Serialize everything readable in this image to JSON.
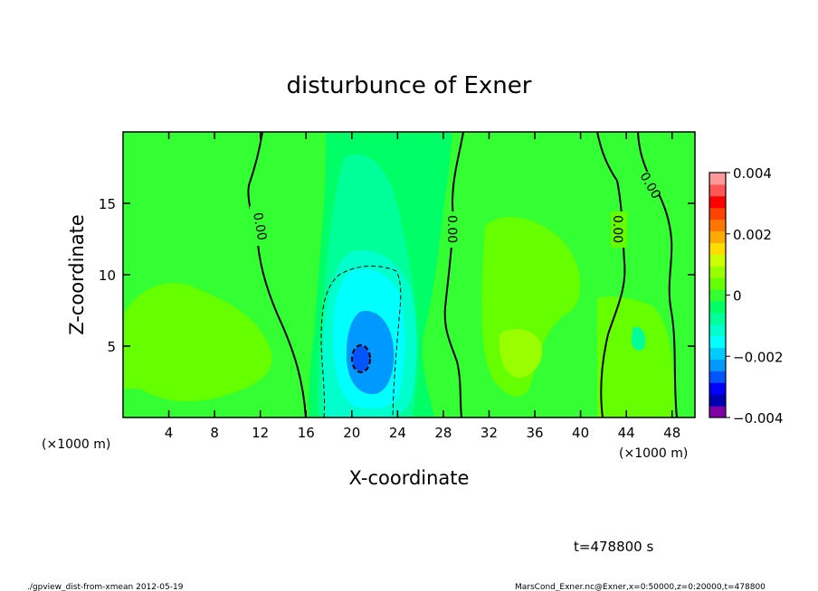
{
  "chart_data": {
    "type": "heatmap",
    "title": "disturbunce of Exner",
    "xlabel": "X-coordinate",
    "ylabel": "Z-coordinate",
    "x_unit_left": "(×1000 m)",
    "x_unit_right": "(×1000 m)",
    "xlim": [
      0,
      50
    ],
    "ylim": [
      0,
      20
    ],
    "x_ticks": [
      "4",
      "8",
      "12",
      "16",
      "20",
      "24",
      "28",
      "32",
      "36",
      "40",
      "44",
      "48"
    ],
    "y_ticks": [
      "5",
      "10",
      "15"
    ],
    "contour_labels": [
      "0.00",
      "0.00",
      "0.00",
      "0.00"
    ],
    "colorbar": {
      "range": [
        -0.004,
        0.004
      ],
      "tick_labels": [
        "0.004",
        "0.002",
        "0",
        "−0.002",
        "−0.004"
      ],
      "colors": [
        "#7f00a6",
        "#0000b3",
        "#0000ff",
        "#0055ff",
        "#0099ff",
        "#00ccff",
        "#00ffff",
        "#00ffcc",
        "#00ff99",
        "#00ff66",
        "#33ff33",
        "#66ff00",
        "#99ff00",
        "#ccff00",
        "#ffdd00",
        "#ffaa00",
        "#ff7700",
        "#ff4400",
        "#ff0000",
        "#ff5555",
        "#ff9999"
      ]
    },
    "features": [
      {
        "name": "negative-minimum",
        "x": 21,
        "z": 4,
        "value": -0.002
      },
      {
        "name": "positive-maximum",
        "x": 34,
        "z": 5,
        "value": 0.0006
      }
    ]
  },
  "footer": {
    "time": "t=478800 s",
    "script": "./gpview_dist-from-xmean  2012-05-19",
    "source": "MarsCond_Exner.nc@Exner,x=0:50000,z=0:20000,t=478800"
  }
}
